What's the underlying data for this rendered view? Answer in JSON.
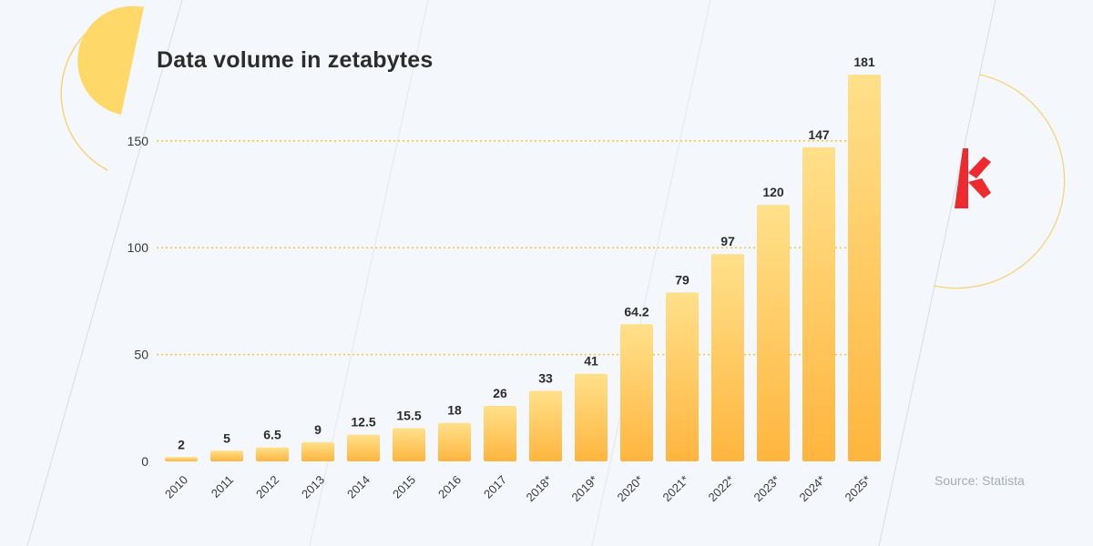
{
  "chart_data": {
    "type": "bar",
    "title": "Data volume in zetabytes",
    "xlabel": "",
    "ylabel": "",
    "categories": [
      "2010",
      "2011",
      "2012",
      "2013",
      "2014",
      "2015",
      "2016",
      "2017",
      "2018*",
      "2019*",
      "2020*",
      "2021*",
      "2022*",
      "2023*",
      "2024*",
      "2025*"
    ],
    "values": [
      2,
      5,
      6.5,
      9,
      12.5,
      15.5,
      18,
      26,
      33,
      41,
      64.2,
      79,
      97,
      120,
      147,
      181
    ],
    "value_labels": [
      "2",
      "5",
      "6.5",
      "9",
      "12.5",
      "15.5",
      "18",
      "26",
      "33",
      "41",
      "64.2",
      "79",
      "97",
      "120",
      "147",
      "181"
    ],
    "ylim": [
      0,
      181
    ],
    "yticks": [
      0,
      50,
      100,
      150
    ],
    "grid": true,
    "legend": "none",
    "colors": {
      "bar_top": "#ffe08a",
      "bar_bottom": "#ffb53e",
      "grid": "#f8c53a",
      "logo": "#ee2a2f",
      "accent_circle": "#ffd86a"
    }
  },
  "source": "Source: Statista"
}
